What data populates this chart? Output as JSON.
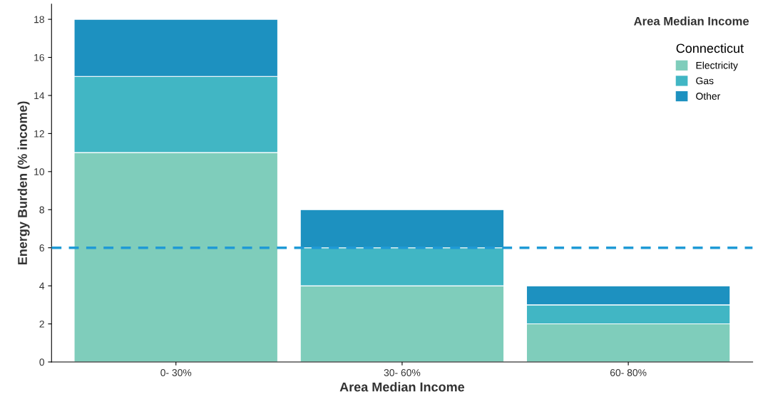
{
  "chart_data": {
    "type": "bar",
    "stacked": true,
    "xlabel": "Area Median Income",
    "ylabel": "Energy Burden (% income)",
    "legend_title": "Area Median Income",
    "subtitle": "Connecticut",
    "categories": [
      "0- 30%",
      "30- 60%",
      "60- 80%"
    ],
    "series": [
      {
        "name": "Electricity",
        "color": "#7fcdbb",
        "values": [
          11,
          4,
          2
        ]
      },
      {
        "name": "Gas",
        "color": "#41b6c4",
        "values": [
          4,
          2,
          1
        ]
      },
      {
        "name": "Other",
        "color": "#1d91c0",
        "values": [
          3,
          2,
          1
        ]
      }
    ],
    "ylim": [
      0,
      18.8
    ],
    "yticks": [
      0,
      2,
      4,
      6,
      8,
      10,
      12,
      14,
      16,
      18
    ],
    "ref_lines": [
      {
        "axis": "y",
        "value": 6,
        "color": "#1f9ad6",
        "line_style": "dashed"
      }
    ],
    "grid": false,
    "legend": "top right"
  }
}
